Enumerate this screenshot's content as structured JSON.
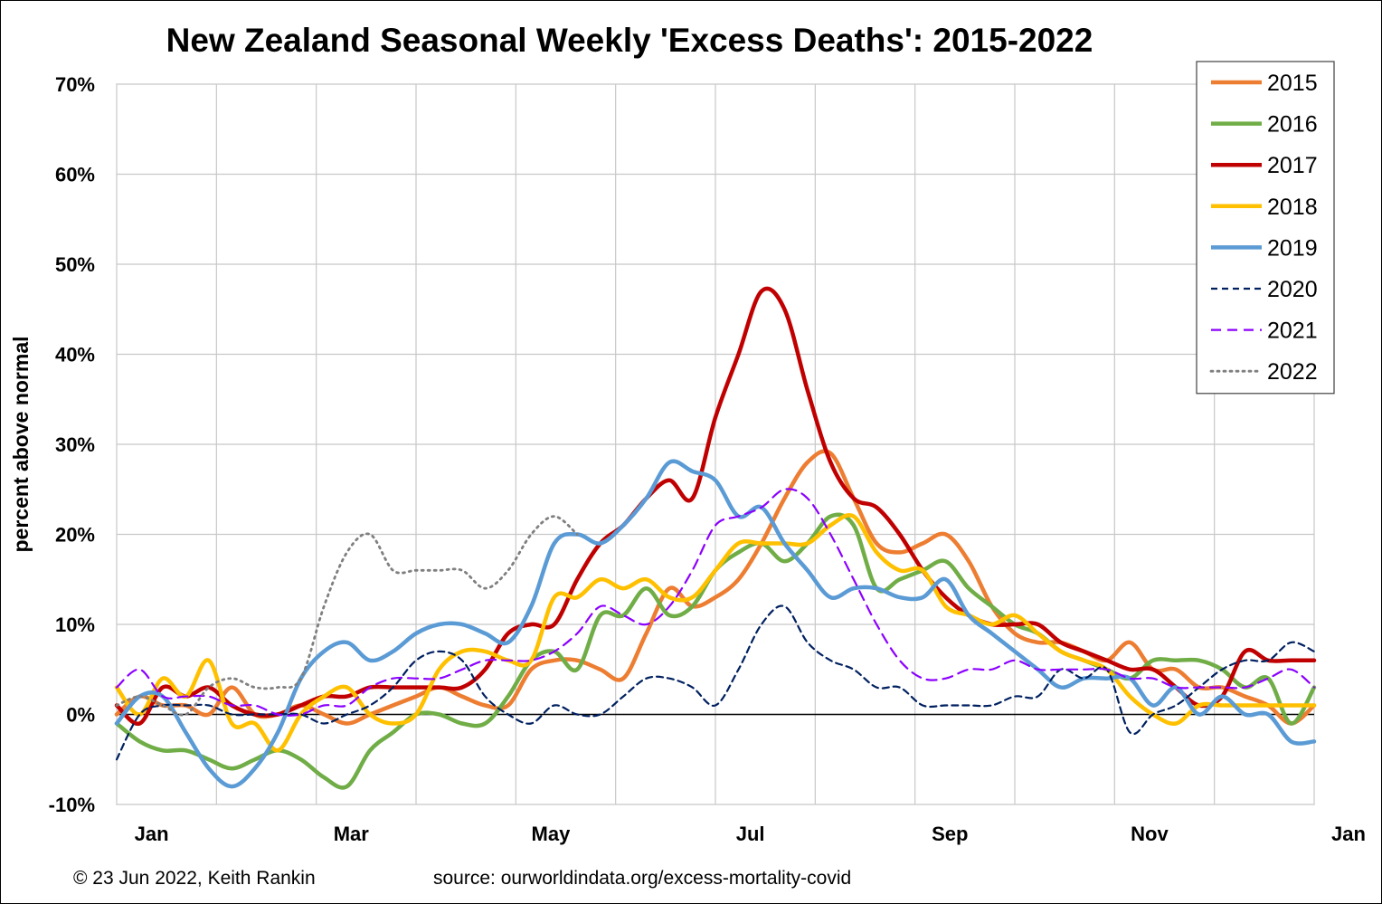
{
  "chart_data": {
    "type": "line",
    "title": "New Zealand Seasonal Weekly 'Excess Deaths': 2015-2022",
    "ylabel": "percent above normal",
    "xlabel": "",
    "x_tick_labels": [
      "Jan",
      "Mar",
      "May",
      "Jul",
      "Sep",
      "Nov",
      "Jan"
    ],
    "y_tick_labels": [
      "-10%",
      "0%",
      "10%",
      "20%",
      "30%",
      "40%",
      "50%",
      "60%",
      "70%"
    ],
    "ylim": [
      -10,
      70
    ],
    "xlim_weeks": [
      0,
      52
    ],
    "grid": true,
    "legend_position": "top-right",
    "footer_left": "© 23 Jun 2022, Keith Rankin",
    "footer_right": "source: ourworldindata.org/excess-mortality-covid",
    "x_unit": "week of year",
    "series": [
      {
        "name": "2015",
        "color": "#ED7D31",
        "dash": "solid",
        "x": [
          0,
          1,
          2,
          3,
          4,
          5,
          6,
          7,
          8,
          9,
          10,
          11,
          12,
          13,
          14,
          15,
          16,
          17,
          18,
          19,
          20,
          21,
          22,
          23,
          24,
          25,
          26,
          27,
          28,
          29,
          30,
          31,
          32,
          33,
          34,
          35,
          36,
          37,
          38,
          39,
          40,
          41,
          42,
          43,
          44,
          45,
          46,
          47,
          48,
          49,
          50,
          51,
          52
        ],
        "y": [
          0,
          2,
          1,
          1,
          0,
          3,
          0,
          0,
          1,
          0,
          -1,
          0,
          1,
          2,
          3,
          2,
          1,
          1,
          5,
          6,
          6,
          5,
          4,
          9,
          14,
          12,
          13,
          15,
          19,
          24,
          28,
          29,
          24,
          19,
          18,
          19,
          20,
          17,
          12,
          9,
          8,
          8,
          7,
          6,
          8,
          5,
          5,
          3,
          3,
          2,
          1,
          -1,
          1
        ]
      },
      {
        "name": "2016",
        "color": "#70AD47",
        "dash": "solid",
        "x": [
          0,
          1,
          2,
          3,
          4,
          5,
          6,
          7,
          8,
          9,
          10,
          11,
          12,
          13,
          14,
          15,
          16,
          17,
          18,
          19,
          20,
          21,
          22,
          23,
          24,
          25,
          26,
          27,
          28,
          29,
          30,
          31,
          32,
          33,
          34,
          35,
          36,
          37,
          38,
          39,
          40,
          41,
          42,
          43,
          44,
          45,
          46,
          47,
          48,
          49,
          50,
          51,
          52
        ],
        "y": [
          -1,
          -3,
          -4,
          -4,
          -5,
          -6,
          -5,
          -4,
          -5,
          -7,
          -8,
          -4,
          -2,
          0,
          0,
          -1,
          -1,
          2,
          6,
          7,
          5,
          11,
          11,
          14,
          11,
          12,
          16,
          18,
          19,
          17,
          19,
          22,
          21,
          14,
          15,
          16,
          17,
          14,
          12,
          10,
          9,
          7,
          6,
          5,
          4,
          6,
          6,
          6,
          5,
          3,
          4,
          -1,
          3
        ]
      },
      {
        "name": "2017",
        "color": "#C00000",
        "dash": "solid",
        "x": [
          0,
          1,
          2,
          3,
          4,
          5,
          6,
          7,
          8,
          9,
          10,
          11,
          12,
          13,
          14,
          15,
          16,
          17,
          18,
          19,
          20,
          21,
          22,
          23,
          24,
          25,
          26,
          27,
          28,
          29,
          30,
          31,
          32,
          33,
          34,
          35,
          36,
          37,
          38,
          39,
          40,
          41,
          42,
          43,
          44,
          45,
          46,
          47,
          48,
          49,
          50,
          51,
          52
        ],
        "y": [
          1,
          -1,
          3,
          2,
          3,
          1,
          0,
          0,
          1,
          2,
          2,
          3,
          3,
          3,
          3,
          3,
          5,
          9,
          10,
          10,
          15,
          19,
          21,
          24,
          26,
          24,
          33,
          40,
          47,
          45,
          36,
          28,
          24,
          23,
          20,
          16,
          13,
          11,
          10,
          10,
          10,
          8,
          7,
          6,
          5,
          5,
          3,
          1,
          2,
          7,
          6,
          6,
          6
        ]
      },
      {
        "name": "2018",
        "color": "#FFC000",
        "dash": "solid",
        "x": [
          0,
          1,
          2,
          3,
          4,
          5,
          6,
          7,
          8,
          9,
          10,
          11,
          12,
          13,
          14,
          15,
          16,
          17,
          18,
          19,
          20,
          21,
          22,
          23,
          24,
          25,
          26,
          27,
          28,
          29,
          30,
          31,
          32,
          33,
          34,
          35,
          36,
          37,
          38,
          39,
          40,
          41,
          42,
          43,
          44,
          45,
          46,
          47,
          48,
          49,
          50,
          51,
          52
        ],
        "y": [
          3,
          0,
          4,
          2,
          6,
          -1,
          -1,
          -4,
          0,
          2,
          3,
          0,
          -1,
          0,
          5,
          7,
          7,
          6,
          6,
          13,
          13,
          15,
          14,
          15,
          13,
          13,
          16,
          19,
          19,
          19,
          19,
          21,
          22,
          18,
          16,
          16,
          12,
          11,
          10,
          11,
          9,
          7,
          6,
          5,
          2,
          0,
          -1,
          1,
          1,
          1,
          1,
          1,
          1
        ]
      },
      {
        "name": "2019",
        "color": "#5B9BD5",
        "dash": "solid",
        "x": [
          0,
          1,
          2,
          3,
          4,
          5,
          6,
          7,
          8,
          9,
          10,
          11,
          12,
          13,
          14,
          15,
          16,
          17,
          18,
          19,
          20,
          21,
          22,
          23,
          24,
          25,
          26,
          27,
          28,
          29,
          30,
          31,
          32,
          33,
          34,
          35,
          36,
          37,
          38,
          39,
          40,
          41,
          42,
          43,
          44,
          45,
          46,
          47,
          48,
          49,
          50,
          51,
          52
        ],
        "y": [
          -1,
          2,
          2,
          -2,
          -6,
          -8,
          -6,
          -2,
          4,
          7,
          8,
          6,
          7,
          9,
          10,
          10,
          9,
          8,
          12,
          19,
          20,
          19,
          21,
          24,
          28,
          27,
          26,
          22,
          23,
          19,
          16,
          13,
          14,
          14,
          13,
          13,
          15,
          11,
          9,
          7,
          5,
          3,
          4,
          4,
          4,
          1,
          3,
          0,
          2,
          0,
          0,
          -3,
          -3
        ]
      },
      {
        "name": "2020",
        "color": "#002060",
        "dash": "short-dash",
        "x": [
          0,
          1,
          2,
          3,
          4,
          5,
          6,
          7,
          8,
          9,
          10,
          11,
          12,
          13,
          14,
          15,
          16,
          17,
          18,
          19,
          20,
          21,
          22,
          23,
          24,
          25,
          26,
          27,
          28,
          29,
          30,
          31,
          32,
          33,
          34,
          35,
          36,
          37,
          38,
          39,
          40,
          41,
          42,
          43,
          44,
          45,
          46,
          47,
          48,
          49,
          50,
          51,
          52
        ],
        "y": [
          -5,
          0,
          1,
          1,
          1,
          0,
          0,
          0,
          0,
          -1,
          0,
          1,
          3,
          6,
          7,
          6,
          2,
          0,
          -1,
          1,
          0,
          0,
          2,
          4,
          4,
          3,
          1,
          5,
          10,
          12,
          8,
          6,
          5,
          3,
          3,
          1,
          1,
          1,
          1,
          2,
          2,
          5,
          4,
          5,
          -2,
          0,
          1,
          3,
          5,
          6,
          6,
          8,
          7
        ]
      },
      {
        "name": "2021",
        "color": "#8B00FF",
        "dash": "long-dash",
        "x": [
          0,
          1,
          2,
          3,
          4,
          5,
          6,
          7,
          8,
          9,
          10,
          11,
          12,
          13,
          14,
          15,
          16,
          17,
          18,
          19,
          20,
          21,
          22,
          23,
          24,
          25,
          26,
          27,
          28,
          29,
          30,
          31,
          32,
          33,
          34,
          35,
          36,
          37,
          38,
          39,
          40,
          41,
          42,
          43,
          44,
          45,
          46,
          47,
          48,
          49,
          50,
          51,
          52
        ],
        "y": [
          3,
          5,
          2,
          2,
          2,
          1,
          1,
          0,
          0,
          1,
          1,
          3,
          4,
          4,
          4,
          5,
          6,
          6,
          6,
          7,
          9,
          12,
          11,
          10,
          12,
          16,
          21,
          22,
          23,
          25,
          24,
          20,
          15,
          10,
          6,
          4,
          4,
          5,
          5,
          6,
          5,
          5,
          5,
          5,
          4,
          4,
          3,
          3,
          3,
          3,
          4,
          5,
          3
        ]
      },
      {
        "name": "2022",
        "color": "#7F7F7F",
        "dash": "dotted",
        "x": [
          0,
          1,
          2,
          3,
          4,
          5,
          6,
          7,
          8,
          9,
          10,
          11,
          12,
          13,
          14,
          15,
          16,
          17,
          18,
          19,
          20
        ],
        "y": [
          1,
          2,
          1,
          0,
          3,
          4,
          3,
          3,
          4,
          12,
          18,
          20,
          16,
          16,
          16,
          16,
          14,
          16,
          20,
          22,
          20
        ]
      }
    ]
  }
}
